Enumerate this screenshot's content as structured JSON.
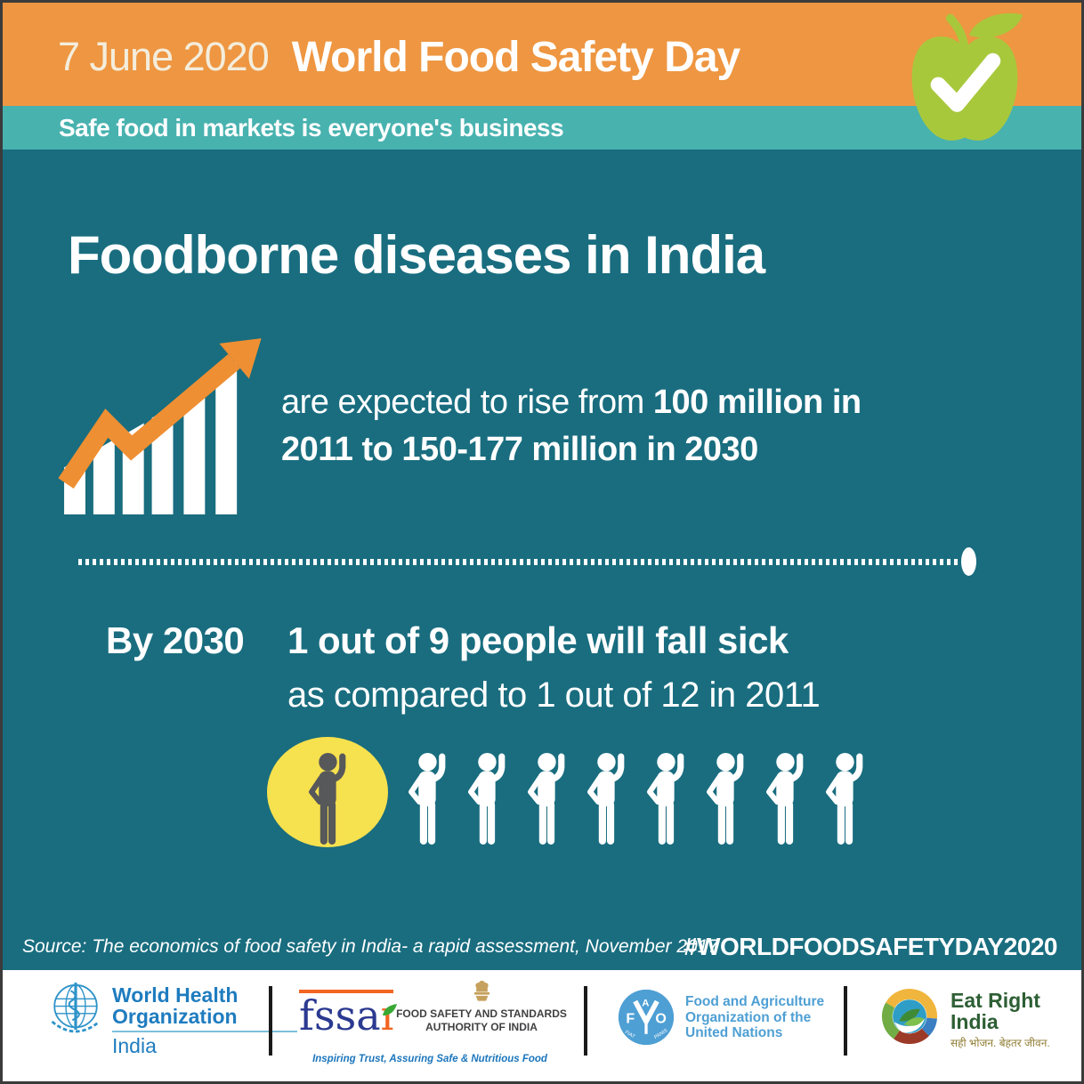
{
  "colors": {
    "orange": "#EE9641",
    "teal-light": "#48B2AF",
    "teal-dark": "#196D7F",
    "apple-green": "#A8C83C",
    "arrow-orange": "#EE8F33",
    "highlight-yellow": "#F6E14E",
    "person-gray": "#57585A",
    "who-blue": "#1F7CBF",
    "who-underline": "#7AC0DC",
    "fssai-navy": "#2B3990",
    "fssai-orange": "#F26522",
    "fssai-green": "#39A935",
    "fssai-gray": "#414042",
    "tagline-blue": "#1B75BC",
    "fao-blue": "#4E9FD4",
    "eatright-green": "#2D5F34",
    "eatright-hindi": "#8F7D33",
    "emblem-gold": "#C6A15E",
    "divider-dark": "#1A1A1A"
  },
  "header": {
    "date": "7 June 2020",
    "title": "World Food Safety Day",
    "tagline": "Safe food in markets is everyone's business"
  },
  "main": {
    "title": "Foodborne diseases in India",
    "rise_prefix": "are expected to rise from ",
    "rise_bold_line1": "100 million in",
    "rise_bold_line2": "2011 to 150-177 million in 2030",
    "by2030_label": "By 2030",
    "by2030_line1": "1 out of 9 people will fall sick",
    "by2030_line2": "as compared to 1 out of 12 in 2011",
    "pictograph": {
      "total": 9,
      "highlighted": 1
    }
  },
  "source": "Source: The economics of food safety in India- a rapid assessment, November 2017",
  "hashtag": "#WORLDFOODSAFETYDAY2020",
  "footer": {
    "who": {
      "line1": "World Health",
      "line2": "Organization",
      "line3": "India"
    },
    "fssai": {
      "logo_fssa": "fssa",
      "logo_i": "ı",
      "org1": "FOOD SAFETY AND STANDARDS",
      "org2": "AUTHORITY OF INDIA",
      "tagline": "Inspiring Trust, Assuring Safe & Nutritious Food"
    },
    "fao": {
      "letter_f": "F",
      "letter_a": "A",
      "letter_o": "O",
      "motto_left": "FIAT",
      "motto_right": "PANIS",
      "line1": "Food and Agriculture",
      "line2": "Organization of the",
      "line3": "United Nations"
    },
    "eatright": {
      "line1": "Eat Right",
      "line2": "India",
      "hindi": "सही भोजन. बेहतर जीवन."
    }
  }
}
